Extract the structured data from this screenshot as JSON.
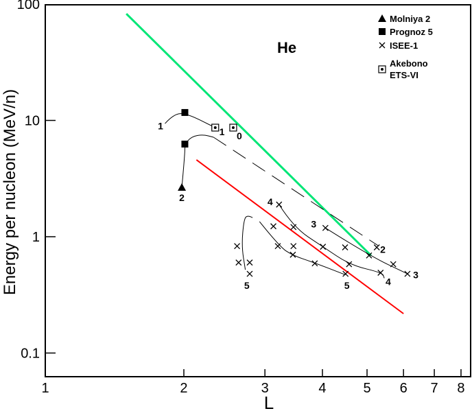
{
  "chart_data": {
    "type": "scatter",
    "title": "He",
    "xlabel": "L",
    "ylabel": "Energy per nucleon (MeV/n)",
    "xscale": "log",
    "yscale": "log",
    "xlim": [
      1,
      8.5
    ],
    "ylim": [
      0.063,
      100
    ],
    "grid": false,
    "legend_position": "top-right",
    "x_ticks": [
      {
        "v": 1,
        "label": "1"
      },
      {
        "v": 2,
        "label": "2"
      },
      {
        "v": 3,
        "label": "3"
      },
      {
        "v": 4,
        "label": "4"
      },
      {
        "v": 5,
        "label": "5"
      },
      {
        "v": 6,
        "label": "6"
      },
      {
        "v": 7,
        "label": "7"
      },
      {
        "v": 8,
        "label": "8"
      }
    ],
    "y_ticks": [
      {
        "v": 100,
        "label": "100"
      },
      {
        "v": 10,
        "label": "10"
      },
      {
        "v": 1,
        "label": "1"
      },
      {
        "v": 0.1,
        "label": "0.1"
      }
    ],
    "legend": [
      {
        "marker": "triangle",
        "label": "Molniya 2"
      },
      {
        "marker": "square",
        "label": "Prognoz 5"
      },
      {
        "marker": "cross",
        "label": "ISEE-1"
      },
      {
        "marker": "dotted-square",
        "label": "Akebono",
        "label2": "ETS-VI"
      }
    ],
    "series": [
      {
        "name": "Molniya 2",
        "marker": "triangle",
        "points": [
          [
            1.98,
            2.66
          ]
        ]
      },
      {
        "name": "Prognoz 5",
        "marker": "square",
        "points": [
          [
            2.01,
            11.7
          ],
          [
            2.01,
            6.26
          ]
        ]
      },
      {
        "name": "Akebono ETS-VI",
        "marker": "dotted-square",
        "points": [
          [
            2.34,
            8.67
          ],
          [
            2.56,
            8.67
          ]
        ]
      },
      {
        "name": "ISEE-1",
        "marker": "cross",
        "points": [
          [
            3.22,
            1.89
          ],
          [
            3.13,
            1.23
          ],
          [
            3.46,
            1.21
          ],
          [
            4.06,
            1.19
          ],
          [
            3.2,
            0.83
          ],
          [
            3.46,
            0.83
          ],
          [
            4.01,
            0.82
          ],
          [
            4.48,
            0.81
          ],
          [
            5.05,
            0.69
          ],
          [
            5.25,
            0.81
          ],
          [
            2.61,
            0.83
          ],
          [
            2.63,
            0.6
          ],
          [
            2.78,
            0.6
          ],
          [
            2.78,
            0.48
          ],
          [
            3.45,
            0.7
          ],
          [
            3.85,
            0.59
          ],
          [
            4.49,
            0.48
          ],
          [
            4.57,
            0.58
          ],
          [
            5.35,
            0.49
          ],
          [
            5.7,
            0.58
          ],
          [
            6.12,
            0.48
          ]
        ]
      }
    ],
    "lines": [
      {
        "name": "green-fit",
        "color": "#00e676",
        "width": 3,
        "points": [
          [
            1.5,
            82.6
          ],
          [
            5.1,
            0.69
          ]
        ]
      },
      {
        "name": "red-fit",
        "color": "#ff0000",
        "width": 2,
        "points": [
          [
            2.13,
            4.58
          ],
          [
            6.0,
            0.218
          ]
        ]
      }
    ],
    "curves": [
      {
        "name": "curve-1",
        "dashed": false,
        "points": [
          [
            1.82,
            9.4
          ],
          [
            1.89,
            11.1
          ],
          [
            2.01,
            11.7
          ],
          [
            2.34,
            8.67
          ]
        ]
      },
      {
        "name": "curve-2-solid",
        "dashed": false,
        "points": [
          [
            1.98,
            2.66
          ],
          [
            2.01,
            5.1
          ],
          [
            2.01,
            6.26
          ],
          [
            2.08,
            7.27
          ],
          [
            2.2,
            7.57
          ],
          [
            2.32,
            7.17
          ]
        ]
      },
      {
        "name": "curve-2-dashed",
        "dashed": true,
        "points": [
          [
            2.32,
            7.17
          ],
          [
            5.28,
            0.84
          ]
        ]
      },
      {
        "name": "curve-4",
        "dashed": false,
        "points": [
          [
            3.22,
            1.89
          ],
          [
            3.46,
            1.21
          ],
          [
            4.01,
            0.82
          ],
          [
            4.6,
            0.57
          ],
          [
            5.4,
            0.49
          ],
          [
            5.45,
            0.44
          ]
        ]
      },
      {
        "name": "curve-3",
        "dashed": false,
        "points": [
          [
            4.06,
            1.19
          ],
          [
            5.05,
            0.69
          ],
          [
            6.12,
            0.48
          ]
        ]
      },
      {
        "name": "curve-5-right",
        "dashed": false,
        "points": [
          [
            2.92,
            1.35
          ],
          [
            3.23,
            0.82
          ],
          [
            3.45,
            0.69
          ],
          [
            3.83,
            0.6
          ],
          [
            4.49,
            0.47
          ]
        ]
      },
      {
        "name": "curve-5-left",
        "dashed": false,
        "points": [
          [
            2.82,
            1.46
          ],
          [
            2.75,
            1.54
          ],
          [
            2.7,
            1.4
          ],
          [
            2.67,
            0.83
          ],
          [
            2.72,
            0.52
          ]
        ]
      }
    ],
    "annotations": [
      {
        "text": "1",
        "x": 1.78,
        "y": 9.0
      },
      {
        "text": "1",
        "x": 2.42,
        "y": 8.0
      },
      {
        "text": "0",
        "x": 2.64,
        "y": 7.36
      },
      {
        "text": "2",
        "x": 1.98,
        "y": 2.17
      },
      {
        "text": "4",
        "x": 3.08,
        "y": 2.0
      },
      {
        "text": "3",
        "x": 3.83,
        "y": 1.29
      },
      {
        "text": "2",
        "x": 5.41,
        "y": 0.78
      },
      {
        "text": "5",
        "x": 2.74,
        "y": 0.38
      },
      {
        "text": "5",
        "x": 4.52,
        "y": 0.38
      },
      {
        "text": "4",
        "x": 5.56,
        "y": 0.41
      },
      {
        "text": "3",
        "x": 6.38,
        "y": 0.47
      }
    ]
  }
}
